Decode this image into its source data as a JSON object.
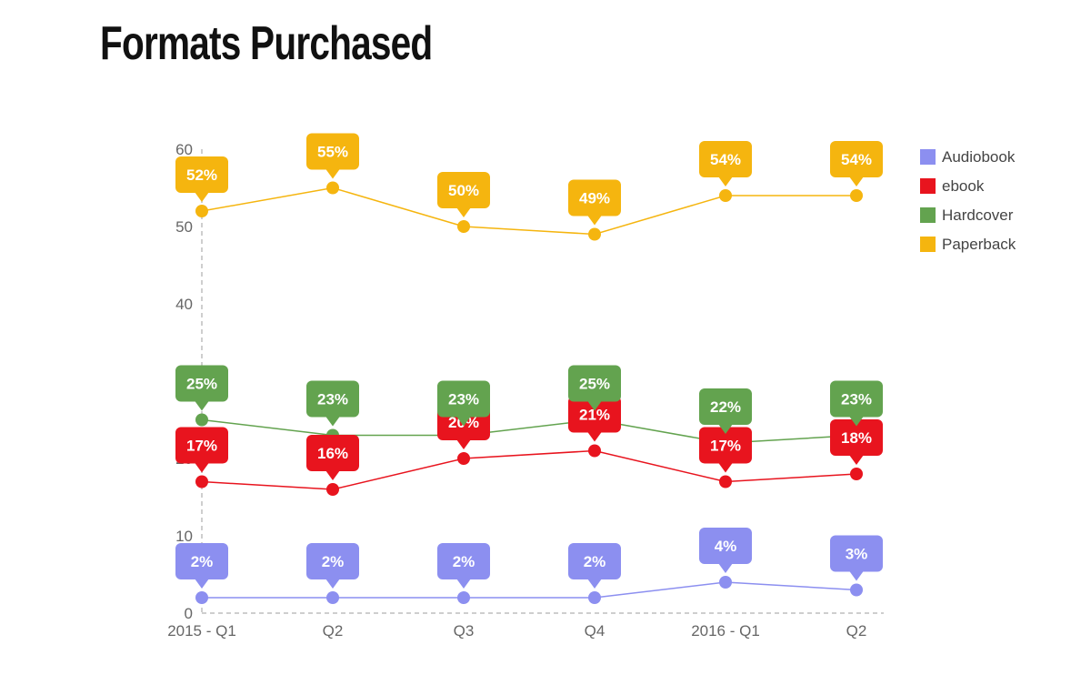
{
  "page": {
    "title": "Formats Purchased"
  },
  "chart_data": {
    "type": "line",
    "categories": [
      "2015 - Q1",
      "Q2",
      "Q3",
      "Q4",
      "2016 - Q1",
      "Q2"
    ],
    "ylim": [
      0,
      60
    ],
    "yticks": [
      0,
      10,
      20,
      30,
      40,
      50,
      60
    ],
    "ytick_labels": [
      "0",
      "10",
      "20",
      "30",
      "40",
      "50",
      "60"
    ],
    "grid": false,
    "legend_position": "right",
    "label_suffix": "%",
    "series": [
      {
        "name": "Audiobook",
        "color": "#8c8ff0",
        "values": [
          2,
          2,
          2,
          2,
          4,
          3
        ]
      },
      {
        "name": "ebook",
        "color": "#e8141e",
        "values": [
          17,
          16,
          20,
          21,
          17,
          18
        ]
      },
      {
        "name": "Hardcover",
        "color": "#63a34f",
        "values": [
          25,
          23,
          23,
          25,
          22,
          23
        ]
      },
      {
        "name": "Paperback",
        "color": "#f5b50f",
        "values": [
          52,
          55,
          50,
          49,
          54,
          54
        ]
      }
    ]
  }
}
